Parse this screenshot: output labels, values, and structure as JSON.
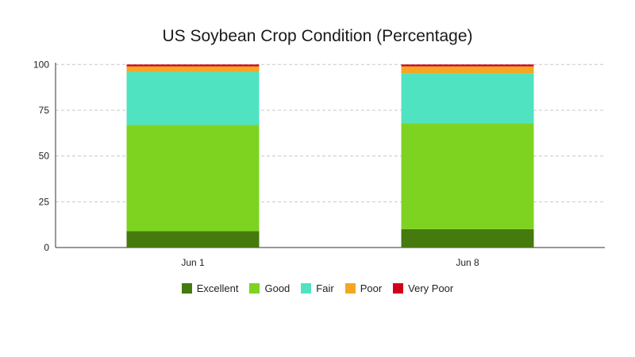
{
  "chart_data": {
    "type": "bar",
    "stacked": true,
    "title": "US Soybean Crop Condition (Percentage)",
    "categories": [
      "Jun 1",
      "Jun 8"
    ],
    "ylim": [
      0,
      100
    ],
    "yticks": [
      0,
      25,
      50,
      75,
      100
    ],
    "grid": true,
    "legend_position": "bottom",
    "series": [
      {
        "name": "Excellent",
        "color": "#457a0e",
        "values": [
          9,
          10
        ]
      },
      {
        "name": "Good",
        "color": "#7ed321",
        "values": [
          58,
          58
        ]
      },
      {
        "name": "Fair",
        "color": "#50e3c2",
        "values": [
          29,
          27
        ]
      },
      {
        "name": "Poor",
        "color": "#f5a623",
        "values": [
          3,
          4
        ]
      },
      {
        "name": "Very Poor",
        "color": "#d0021b",
        "values": [
          1,
          1
        ]
      }
    ]
  }
}
